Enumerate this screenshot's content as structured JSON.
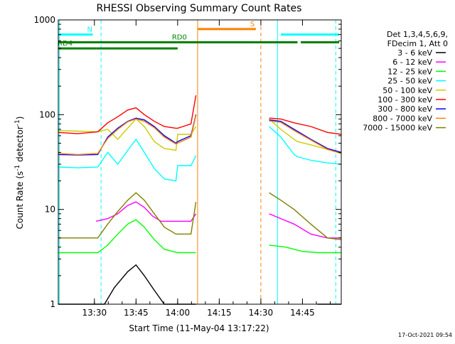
{
  "chart_data": {
    "type": "line",
    "title": "RHESSI Observing Summary Count Rates",
    "xlabel": "Start Time (11-May-04 13:17:22)",
    "ylabel_main": "Count Rate (s",
    "ylabel_sup1": "-1",
    "ylabel_mid": " detector",
    "ylabel_sup2": "-1",
    "ylabel_end": ")",
    "y_scale": "log",
    "ylim": [
      1,
      1000
    ],
    "xlim_minutes": [
      13.283,
      14.983
    ],
    "x_ticks": [
      {
        "label": "13:30",
        "value": 13.5
      },
      {
        "label": "13:45",
        "value": 13.75
      },
      {
        "label": "14:00",
        "value": 14.0
      },
      {
        "label": "14:15",
        "value": 14.25
      },
      {
        "label": "14:30",
        "value": 14.5
      },
      {
        "label": "14:45",
        "value": 14.75
      }
    ],
    "y_ticks": [
      {
        "label": "1",
        "value": 1
      },
      {
        "label": "10",
        "value": 10
      },
      {
        "label": "100",
        "value": 100
      },
      {
        "label": "1000",
        "value": 1000
      }
    ],
    "legend_position": "top-right",
    "legend_header": [
      "Det 1,3,4,5,6,9,",
      "FDecim 1, Att 0"
    ],
    "series": [
      {
        "name": "3 - 6 keV",
        "color": "#000000",
        "segments": [
          [
            [
              13.283,
              1.0
            ],
            [
              13.52,
              1.0
            ],
            [
              13.56,
              1.0
            ],
            [
              13.62,
              1.5
            ],
            [
              13.7,
              2.2
            ],
            [
              13.75,
              2.6
            ],
            [
              13.8,
              2.0
            ],
            [
              13.86,
              1.4
            ],
            [
              13.92,
              1.0
            ],
            [
              14.0,
              1.0
            ],
            [
              14.11,
              1.0
            ]
          ],
          [
            [
              14.84,
              1.0
            ],
            [
              14.983,
              1.0
            ]
          ]
        ]
      },
      {
        "name": "6 - 12 keV",
        "color": "#ff00ff",
        "segments": [
          [
            [
              13.51,
              7.5
            ],
            [
              13.58,
              8.0
            ],
            [
              13.64,
              9.0
            ],
            [
              13.7,
              11.0
            ],
            [
              13.75,
              12.0
            ],
            [
              13.8,
              10.5
            ],
            [
              13.85,
              8.5
            ],
            [
              13.9,
              7.5
            ],
            [
              14.0,
              7.5
            ],
            [
              14.08,
              7.5
            ],
            [
              14.11,
              9.0
            ]
          ],
          [
            [
              14.55,
              9.0
            ],
            [
              14.62,
              8.0
            ],
            [
              14.7,
              7.0
            ],
            [
              14.8,
              5.5
            ],
            [
              14.9,
              5.0
            ],
            [
              14.983,
              5.0
            ]
          ]
        ]
      },
      {
        "name": "12 - 25 keV",
        "color": "#00ff00",
        "segments": [
          [
            [
              13.283,
              3.5
            ],
            [
              13.4,
              3.5
            ],
            [
              13.52,
              3.5
            ],
            [
              13.58,
              4.2
            ],
            [
              13.64,
              5.5
            ],
            [
              13.7,
              7.0
            ],
            [
              13.75,
              7.8
            ],
            [
              13.8,
              6.5
            ],
            [
              13.86,
              4.8
            ],
            [
              13.92,
              3.8
            ],
            [
              14.0,
              3.5
            ],
            [
              14.11,
              3.5
            ]
          ],
          [
            [
              14.55,
              4.2
            ],
            [
              14.65,
              4.0
            ],
            [
              14.75,
              3.6
            ],
            [
              14.85,
              3.5
            ],
            [
              14.983,
              3.5
            ]
          ]
        ]
      },
      {
        "name": "25 - 50 keV",
        "color": "#00ffff",
        "segments": [
          [
            [
              13.283,
              28.0
            ],
            [
              13.4,
              27.5
            ],
            [
              13.52,
              28.0
            ],
            [
              13.58,
              40.0
            ],
            [
              13.64,
              30.0
            ],
            [
              13.7,
              42.0
            ],
            [
              13.75,
              55.0
            ],
            [
              13.8,
              40.0
            ],
            [
              13.86,
              27.0
            ],
            [
              13.92,
              21.0
            ],
            [
              13.99,
              20.0
            ],
            [
              14.0,
              29.0
            ],
            [
              14.08,
              29.0
            ],
            [
              14.11,
              37.0
            ]
          ],
          [
            [
              14.55,
              75.0
            ],
            [
              14.62,
              58.0
            ],
            [
              14.7,
              38.0
            ],
            [
              14.72,
              36.0
            ],
            [
              14.8,
              33.0
            ],
            [
              14.9,
              31.0
            ],
            [
              14.983,
              30.0
            ]
          ]
        ]
      },
      {
        "name": "50 - 100 keV",
        "color": "#cccc00",
        "segments": [
          [
            [
              13.283,
              68.0
            ],
            [
              13.4,
              67.0
            ],
            [
              13.52,
              66.0
            ],
            [
              13.58,
              70.0
            ],
            [
              13.64,
              55.0
            ],
            [
              13.7,
              72.0
            ],
            [
              13.75,
              90.0
            ],
            [
              13.8,
              75.0
            ],
            [
              13.86,
              52.0
            ],
            [
              13.92,
              44.0
            ],
            [
              13.99,
              42.0
            ],
            [
              14.0,
              62.0
            ],
            [
              14.08,
              62.0
            ],
            [
              14.11,
              75.0
            ]
          ],
          [
            [
              14.55,
              90.0
            ],
            [
              14.62,
              70.0
            ],
            [
              14.7,
              55.0
            ],
            [
              14.72,
              52.0
            ],
            [
              14.8,
              48.0
            ],
            [
              14.9,
              43.0
            ],
            [
              14.983,
              40.0
            ]
          ]
        ]
      },
      {
        "name": "100 - 300 keV",
        "color": "#ff0000",
        "segments": [
          [
            [
              13.283,
              65.0
            ],
            [
              13.4,
              63.0
            ],
            [
              13.52,
              66.0
            ],
            [
              13.58,
              82.0
            ],
            [
              13.64,
              95.0
            ],
            [
              13.7,
              112.0
            ],
            [
              13.75,
              118.0
            ],
            [
              13.8,
              100.0
            ],
            [
              13.86,
              85.0
            ],
            [
              13.92,
              75.0
            ],
            [
              13.99,
              72.0
            ],
            [
              14.0,
              72.0
            ],
            [
              14.08,
              80.0
            ],
            [
              14.11,
              160.0
            ]
          ],
          [
            [
              14.55,
              92.0
            ],
            [
              14.62,
              90.0
            ],
            [
              14.7,
              82.0
            ],
            [
              14.8,
              75.0
            ],
            [
              14.9,
              65.0
            ],
            [
              14.983,
              62.0
            ]
          ]
        ]
      },
      {
        "name": "300 - 800 keV",
        "color": "#0000ff",
        "segments": [
          [
            [
              13.283,
              38.0
            ],
            [
              13.4,
              37.5
            ],
            [
              13.52,
              38.0
            ],
            [
              13.58,
              58.0
            ],
            [
              13.64,
              72.0
            ],
            [
              13.7,
              85.0
            ],
            [
              13.75,
              92.0
            ],
            [
              13.8,
              88.0
            ],
            [
              13.86,
              75.0
            ],
            [
              13.92,
              60.0
            ],
            [
              13.99,
              50.0
            ],
            [
              14.0,
              52.0
            ],
            [
              14.08,
              60.0
            ],
            [
              14.11,
              100.0
            ]
          ],
          [
            [
              14.55,
              88.0
            ],
            [
              14.62,
              85.0
            ],
            [
              14.7,
              70.0
            ],
            [
              14.8,
              55.0
            ],
            [
              14.9,
              44.0
            ],
            [
              14.983,
              40.0
            ]
          ]
        ]
      },
      {
        "name": "800 - 7000 keV",
        "color": "#ff8000",
        "segments": [
          [
            [
              13.283,
              39.0
            ],
            [
              13.4,
              38.0
            ],
            [
              13.52,
              39.0
            ],
            [
              13.58,
              56.0
            ],
            [
              13.64,
              70.0
            ],
            [
              13.7,
              84.0
            ],
            [
              13.75,
              90.0
            ],
            [
              13.8,
              85.0
            ],
            [
              13.86,
              73.0
            ],
            [
              13.92,
              58.0
            ],
            [
              13.99,
              49.0
            ],
            [
              14.0,
              50.0
            ],
            [
              14.08,
              58.0
            ],
            [
              14.11,
              98.0
            ]
          ],
          [
            [
              14.55,
              86.0
            ],
            [
              14.62,
              83.0
            ],
            [
              14.7,
              68.0
            ],
            [
              14.8,
              54.0
            ],
            [
              14.9,
              43.0
            ],
            [
              14.983,
              39.0
            ]
          ]
        ]
      },
      {
        "name": "7000 - 15000 keV",
        "color": "#808000",
        "segments": [
          [
            [
              13.283,
              5.0
            ],
            [
              13.4,
              5.0
            ],
            [
              13.52,
              5.0
            ],
            [
              13.58,
              7.0
            ],
            [
              13.64,
              9.5
            ],
            [
              13.7,
              12.5
            ],
            [
              13.75,
              15.0
            ],
            [
              13.8,
              12.5
            ],
            [
              13.86,
              9.0
            ],
            [
              13.92,
              6.5
            ],
            [
              13.99,
              5.5
            ],
            [
              14.0,
              5.5
            ],
            [
              14.08,
              5.5
            ],
            [
              14.11,
              12.0
            ]
          ],
          [
            [
              14.55,
              15.0
            ],
            [
              14.62,
              12.5
            ],
            [
              14.7,
              10.0
            ],
            [
              14.8,
              7.0
            ],
            [
              14.9,
              5.0
            ],
            [
              14.983,
              4.8
            ]
          ]
        ]
      }
    ],
    "flags": [
      {
        "label": "N",
        "color": "#00ffff",
        "value": 700.0,
        "segments": [
          [
            13.283,
            13.49
          ],
          [
            14.62,
            14.97
          ]
        ]
      },
      {
        "label": "RD0",
        "color": "#008000",
        "value": 580.0,
        "segments": [
          [
            13.283,
            14.0
          ],
          [
            14.0,
            14.47
          ],
          [
            14.47,
            14.72
          ],
          [
            14.74,
            14.97
          ]
        ]
      },
      {
        "label": "RD4",
        "color": "#008000",
        "value": 500.0,
        "segments": [
          [
            13.283,
            13.39
          ],
          [
            13.39,
            13.51
          ],
          [
            13.51,
            14.0
          ]
        ]
      },
      {
        "label": "S",
        "color": "#ff8000",
        "value": 800.0,
        "segments": [
          [
            14.12,
            14.47
          ]
        ]
      }
    ],
    "vertical_markers": [
      {
        "value": 13.29,
        "color": "#00ffff",
        "style": "solid"
      },
      {
        "value": 13.54,
        "color": "#00ffff",
        "style": "dashed"
      },
      {
        "value": 14.12,
        "color": "#ff8000",
        "style": "solid"
      },
      {
        "value": 14.5,
        "color": "#ff8000",
        "style": "dashed"
      },
      {
        "value": 14.6,
        "color": "#00ffff",
        "style": "solid"
      },
      {
        "value": 14.95,
        "color": "#00ffff",
        "style": "dashed"
      }
    ]
  },
  "footer_timestamp": "17-Oct-2021 09:54"
}
